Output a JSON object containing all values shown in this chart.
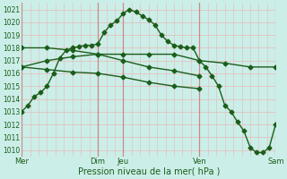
{
  "background_color": "#cceee8",
  "line_color": "#1a5e1a",
  "marker": "D",
  "markersize": 2.5,
  "linewidth": 1.0,
  "ylabel": "Pression niveau de la mer( hPa )",
  "ylim": [
    1009.5,
    1021.5
  ],
  "yticks": [
    1010,
    1011,
    1012,
    1013,
    1014,
    1015,
    1016,
    1017,
    1018,
    1019,
    1020,
    1021
  ],
  "xlim": [
    0,
    120
  ],
  "major_vlines_x": [
    0,
    36,
    48,
    84,
    120
  ],
  "xtick_pos": [
    0,
    36,
    48,
    84,
    120
  ],
  "xtick_labels": [
    "Mer",
    "Dim",
    "Jeu",
    "Ven",
    "Sam"
  ],
  "lines": [
    {
      "x": [
        0,
        3,
        6,
        9,
        12,
        15,
        18,
        21,
        24,
        27,
        30,
        33,
        36,
        39,
        42,
        45,
        48,
        51,
        54,
        57,
        60,
        63,
        66,
        69,
        72,
        75,
        78,
        81,
        84,
        87,
        90,
        93,
        96,
        99,
        102,
        105,
        108,
        111,
        114,
        117,
        120
      ],
      "y": [
        1013.0,
        1013.5,
        1014.2,
        1014.5,
        1015.0,
        1016.0,
        1017.2,
        1017.8,
        1018.0,
        1018.1,
        1018.2,
        1018.2,
        1018.3,
        1019.2,
        1019.8,
        1020.1,
        1020.7,
        1021.0,
        1020.8,
        1020.5,
        1020.2,
        1019.8,
        1019.0,
        1018.5,
        1018.2,
        1018.1,
        1018.0,
        1018.0,
        1017.0,
        1016.5,
        1015.8,
        1015.0,
        1013.5,
        1013.0,
        1012.2,
        1011.5,
        1010.2,
        1009.8,
        1009.8,
        1010.2,
        1012.0
      ]
    },
    {
      "x": [
        0,
        12,
        24,
        36,
        48,
        60,
        72,
        84,
        96,
        108,
        120
      ],
      "y": [
        1016.5,
        1017.0,
        1017.3,
        1017.5,
        1017.5,
        1017.5,
        1017.5,
        1017.0,
        1016.8,
        1016.5,
        1016.5
      ]
    },
    {
      "x": [
        0,
        12,
        24,
        36,
        48,
        60,
        72,
        84
      ],
      "y": [
        1016.5,
        1016.3,
        1016.1,
        1016.0,
        1015.7,
        1015.3,
        1015.0,
        1014.8
      ]
    },
    {
      "x": [
        0,
        12,
        24,
        36,
        48,
        60,
        72,
        84
      ],
      "y": [
        1018.0,
        1018.0,
        1017.8,
        1017.5,
        1017.0,
        1016.5,
        1016.2,
        1015.8
      ]
    }
  ],
  "hgrid_color": "#e8b8b8",
  "vgrid_color": "#e8b8b8",
  "vgrid_major_color": "#cc8888",
  "vgrid_step": 4
}
